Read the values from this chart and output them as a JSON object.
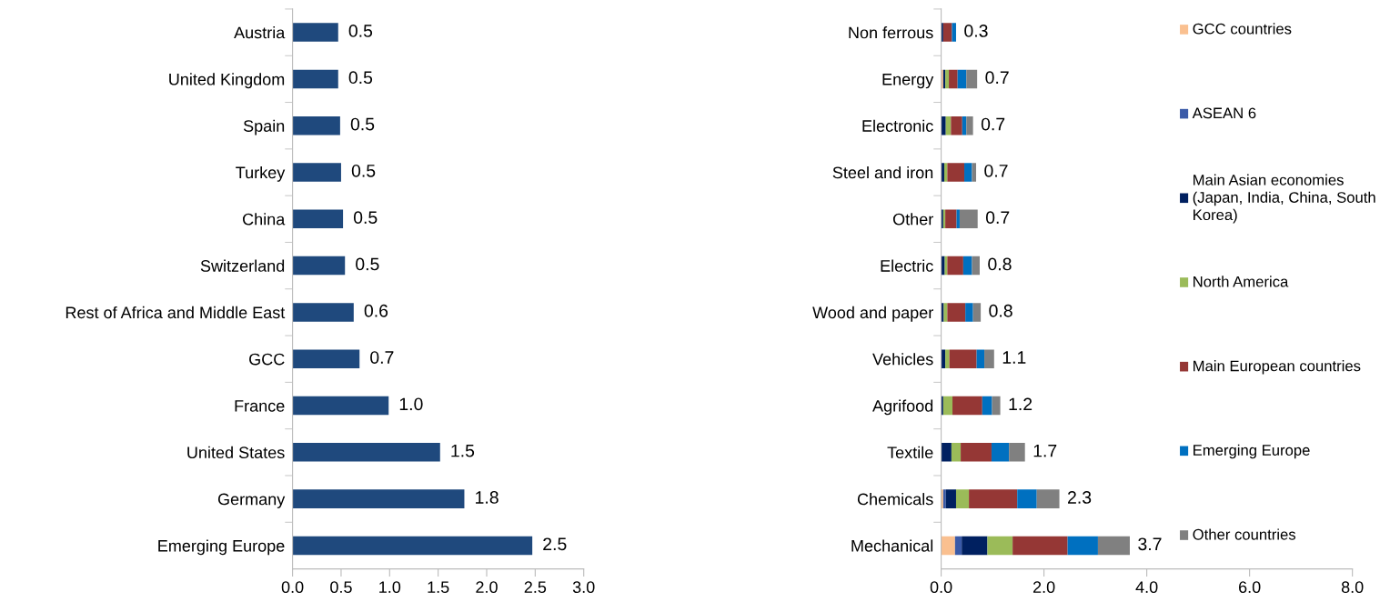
{
  "chart_data": [
    {
      "type": "bar",
      "orientation": "horizontal",
      "categories": [
        "Austria",
        "United Kingdom",
        "Spain",
        "Turkey",
        "China",
        "Switzerland",
        "Rest of Africa and Middle East",
        "GCC",
        "France",
        "United States",
        "Germany",
        "Emerging Europe"
      ],
      "series": [
        {
          "color": "#1f497d",
          "values": [
            0.47,
            0.47,
            0.49,
            0.5,
            0.52,
            0.54,
            0.63,
            0.69,
            0.99,
            1.52,
            1.77,
            2.47
          ],
          "value_labels": [
            "0.5",
            "0.5",
            "0.5",
            "0.5",
            "0.5",
            "0.5",
            "0.6",
            "0.7",
            "1.0",
            "1.5",
            "1.8",
            "2.5"
          ]
        }
      ],
      "xlim": [
        0,
        3
      ],
      "xticks": [
        {
          "value": 0,
          "label": "0.0"
        },
        {
          "value": 0.5,
          "label": "0.5"
        },
        {
          "value": 1,
          "label": "1.0"
        },
        {
          "value": 1.5,
          "label": "1.5"
        },
        {
          "value": 2,
          "label": "2.0"
        },
        {
          "value": 2.5,
          "label": "2.5"
        },
        {
          "value": 3,
          "label": "3.0"
        }
      ],
      "grid": false,
      "legend": false
    },
    {
      "type": "bar",
      "orientation": "horizontal",
      "stacked": true,
      "categories": [
        "Non ferrous",
        "Energy",
        "Electronic",
        "Steel and iron",
        "Other",
        "Electric",
        "Wood and paper",
        "Vehicles",
        "Agrifood",
        "Textile",
        "Chemicals",
        "Mechanical"
      ],
      "series": [
        {
          "name": "GCC countries",
          "color": "#fac090",
          "values": [
            0,
            0.04,
            0,
            0,
            0,
            0,
            0,
            0,
            0,
            0,
            0.04,
            0.27
          ]
        },
        {
          "name": "ASEAN 6",
          "color": "#3a5aa8",
          "values": [
            0,
            0,
            0,
            0,
            0,
            0,
            0,
            0,
            0,
            0,
            0.05,
            0.13
          ]
        },
        {
          "name": "Main Asian economies (Japan, India, China, South Korea)",
          "color": "#002060",
          "values": [
            0.04,
            0.04,
            0.09,
            0.06,
            0.04,
            0.07,
            0.05,
            0.08,
            0.04,
            0.2,
            0.2,
            0.5
          ]
        },
        {
          "name": "North America",
          "color": "#9bbb59",
          "values": [
            0,
            0.07,
            0.1,
            0.06,
            0.04,
            0.05,
            0.07,
            0.08,
            0.18,
            0.18,
            0.25,
            0.49
          ]
        },
        {
          "name": "Main European countries",
          "color": "#953735",
          "values": [
            0.17,
            0.17,
            0.22,
            0.33,
            0.22,
            0.31,
            0.35,
            0.53,
            0.58,
            0.6,
            0.94,
            1.07
          ]
        },
        {
          "name": "Emerging Europe",
          "color": "#0070c0",
          "values": [
            0.08,
            0.17,
            0.08,
            0.15,
            0.06,
            0.17,
            0.15,
            0.15,
            0.19,
            0.34,
            0.38,
            0.59
          ]
        },
        {
          "name": "Other countries",
          "color": "#808080",
          "values": [
            0,
            0.21,
            0.13,
            0.08,
            0.35,
            0.15,
            0.15,
            0.19,
            0.16,
            0.31,
            0.44,
            0.62
          ]
        }
      ],
      "totals": [
        "0.3",
        "0.7",
        "0.7",
        "0.7",
        "0.7",
        "0.8",
        "0.8",
        "1.1",
        "1.2",
        "1.7",
        "2.3",
        "3.7"
      ],
      "xlim": [
        0,
        8
      ],
      "xticks": [
        {
          "value": 0,
          "label": "0.0"
        },
        {
          "value": 2,
          "label": "2.0"
        },
        {
          "value": 4,
          "label": "4.0"
        },
        {
          "value": 6,
          "label": "6.0"
        },
        {
          "value": 8,
          "label": "8.0"
        }
      ],
      "grid": false,
      "legend": "right"
    }
  ]
}
